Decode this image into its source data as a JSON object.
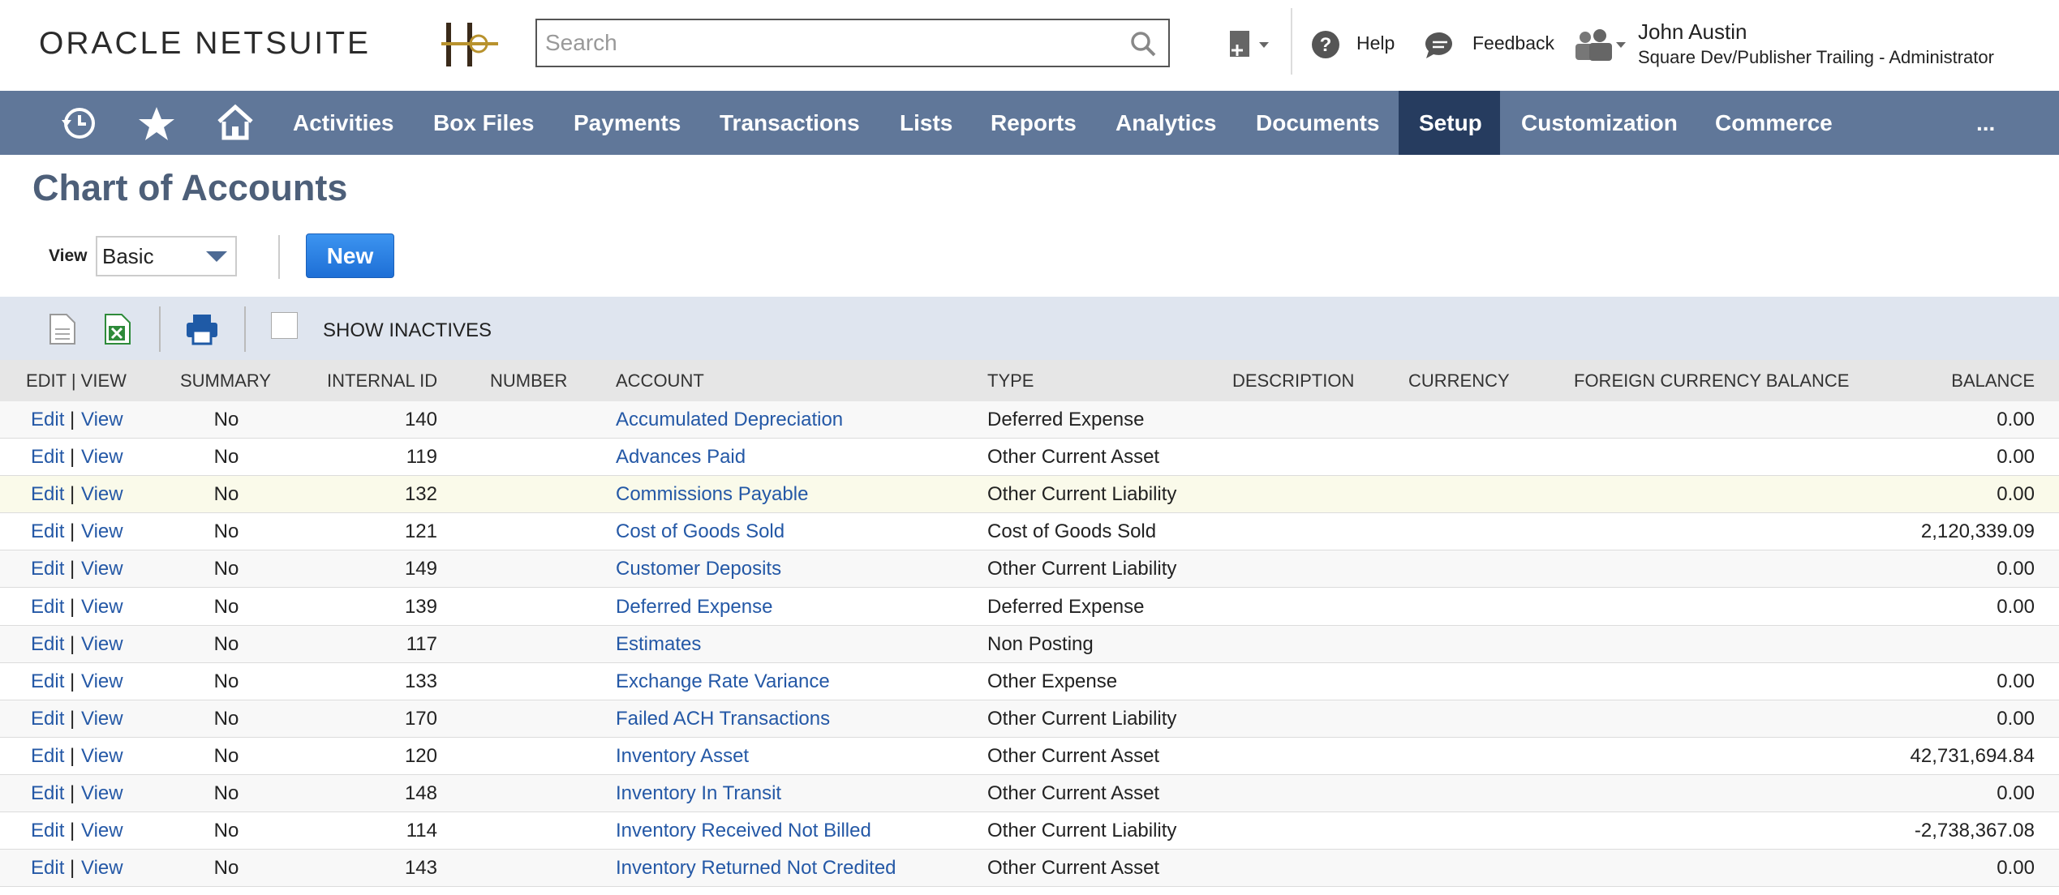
{
  "header": {
    "logo": "ORACLE NETSUITE",
    "search_placeholder": "Search",
    "help": "Help",
    "feedback": "Feedback",
    "user_name": "John Austin",
    "user_role": "Square Dev/Publisher Trailing - Administrator"
  },
  "nav": {
    "items": [
      "Activities",
      "Box Files",
      "Payments",
      "Transactions",
      "Lists",
      "Reports",
      "Analytics",
      "Documents",
      "Setup",
      "Customization",
      "Commerce"
    ],
    "active": "Setup",
    "more": "..."
  },
  "page": {
    "title": "Chart of Accounts",
    "view_label": "View",
    "view_value": "Basic",
    "new_button": "New",
    "show_inactives": "SHOW INACTIVES"
  },
  "table": {
    "columns": [
      "EDIT | VIEW",
      "SUMMARY",
      "INTERNAL ID",
      "NUMBER",
      "ACCOUNT",
      "TYPE",
      "DESCRIPTION",
      "CURRENCY",
      "FOREIGN CURRENCY BALANCE",
      "BALANCE"
    ],
    "actions": {
      "edit": "Edit",
      "separator": "|",
      "view": "View"
    },
    "rows": [
      {
        "summary": "No",
        "internal_id": "140",
        "account": "Accumulated Depreciation",
        "type": "Deferred Expense",
        "balance": "0.00"
      },
      {
        "summary": "No",
        "internal_id": "119",
        "account": "Advances Paid",
        "type": "Other Current Asset",
        "balance": "0.00"
      },
      {
        "summary": "No",
        "internal_id": "132",
        "account": "Commissions Payable",
        "type": "Other Current Liability",
        "balance": "0.00"
      },
      {
        "summary": "No",
        "internal_id": "121",
        "account": "Cost of Goods Sold",
        "type": "Cost of Goods Sold",
        "balance": "2,120,339.09"
      },
      {
        "summary": "No",
        "internal_id": "149",
        "account": "Customer Deposits",
        "type": "Other Current Liability",
        "balance": "0.00"
      },
      {
        "summary": "No",
        "internal_id": "139",
        "account": "Deferred Expense",
        "type": "Deferred Expense",
        "balance": "0.00"
      },
      {
        "summary": "No",
        "internal_id": "117",
        "account": "Estimates",
        "type": "Non Posting"
      },
      {
        "summary": "No",
        "internal_id": "133",
        "account": "Exchange Rate Variance",
        "type": "Other Expense",
        "balance": "0.00"
      },
      {
        "summary": "No",
        "internal_id": "170",
        "account": "Failed ACH Transactions",
        "type": "Other Current Liability",
        "balance": "0.00"
      },
      {
        "summary": "No",
        "internal_id": "120",
        "account": "Inventory Asset",
        "type": "Other Current Asset",
        "balance": "42,731,694.84"
      },
      {
        "summary": "No",
        "internal_id": "148",
        "account": "Inventory In Transit",
        "type": "Other Current Asset",
        "balance": "0.00"
      },
      {
        "summary": "No",
        "internal_id": "114",
        "account": "Inventory Received Not Billed",
        "type": "Other Current Liability",
        "balance": "-2,738,367.08"
      },
      {
        "summary": "No",
        "internal_id": "143",
        "account": "Inventory Returned Not Credited",
        "type": "Other Current Asset",
        "balance": "0.00"
      }
    ]
  }
}
